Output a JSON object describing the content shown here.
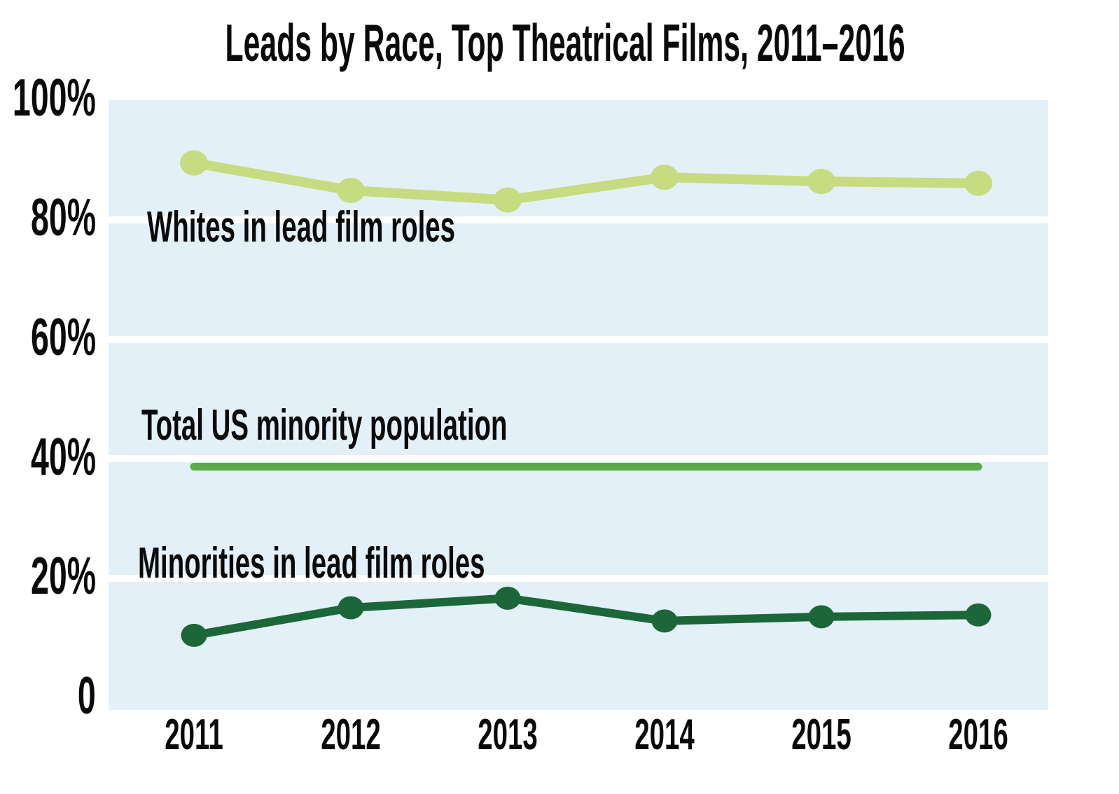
{
  "title": "Leads by Race, Top Theatrical Films, 2011–2016",
  "chart_data": {
    "type": "line",
    "x": [
      "2011",
      "2012",
      "2013",
      "2014",
      "2015",
      "2016"
    ],
    "series": [
      {
        "name": "Whites in lead film roles",
        "values": [
          89.5,
          84.9,
          83.3,
          87.1,
          86.4,
          86.1
        ],
        "color": "#c6dc81",
        "markers": true
      },
      {
        "name": "Total US minority population",
        "values": [
          38.7,
          38.7,
          38.7,
          38.7,
          38.7,
          38.7
        ],
        "color": "#5cab4a",
        "markers": false
      },
      {
        "name": "Minorities in lead film roles",
        "values": [
          10.5,
          15.1,
          16.7,
          12.9,
          13.6,
          13.9
        ],
        "color": "#1c673a",
        "markers": true
      }
    ],
    "y_ticks": [
      {
        "value": 100,
        "label": "100%"
      },
      {
        "value": 80,
        "label": "80%"
      },
      {
        "value": 60,
        "label": "60%"
      },
      {
        "value": 40,
        "label": "40%"
      },
      {
        "value": 20,
        "label": "20%"
      },
      {
        "value": 0,
        "label": "0"
      }
    ],
    "y_gridlines": [
      80,
      60,
      40,
      20
    ],
    "ylim": [
      0,
      100
    ],
    "xlabel": "",
    "ylabel": "",
    "grid": true,
    "legend_position": "labels annotated inside plot"
  },
  "colors": {
    "page_background": "#ffffff",
    "plot_background": "#e4f0f7",
    "gridline": "#ffffff",
    "text": "#0a0a0a"
  }
}
